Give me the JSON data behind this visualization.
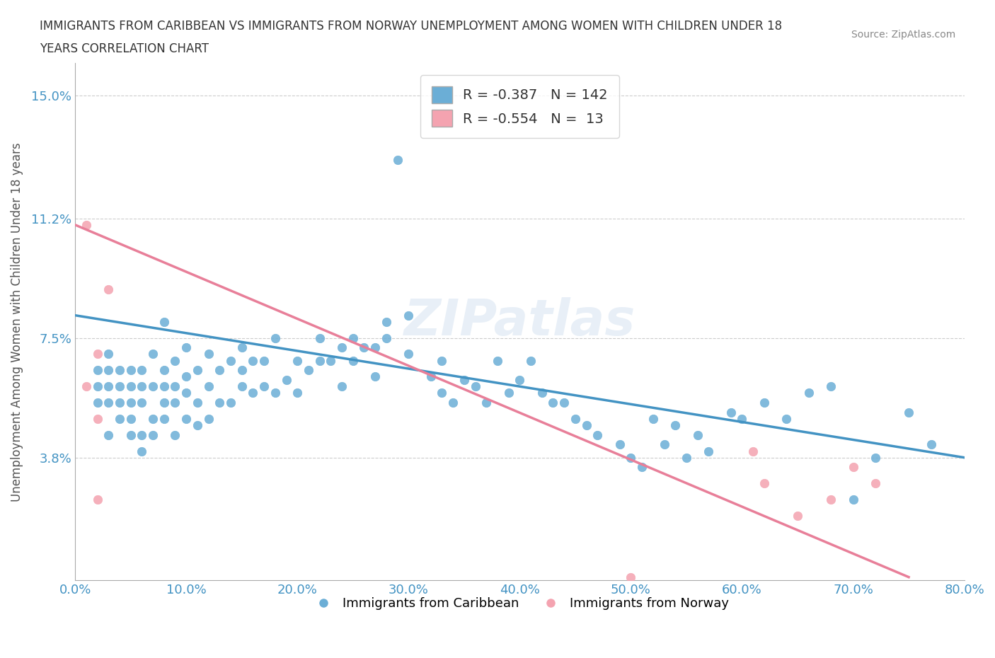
{
  "title": "IMMIGRANTS FROM CARIBBEAN VS IMMIGRANTS FROM NORWAY UNEMPLOYMENT AMONG WOMEN WITH CHILDREN UNDER 18\nYEARS CORRELATION CHART",
  "source_text": "Source: ZipAtlas.com",
  "xlabel": "",
  "ylabel": "Unemployment Among Women with Children Under 18 years",
  "xlim": [
    0.0,
    0.8
  ],
  "ylim": [
    0.0,
    0.16
  ],
  "yticks": [
    0.0,
    0.038,
    0.075,
    0.112,
    0.15
  ],
  "ytick_labels": [
    "",
    "3.8%",
    "7.5%",
    "11.2%",
    "15.0%"
  ],
  "xticks": [
    0.0,
    0.1,
    0.2,
    0.3,
    0.4,
    0.5,
    0.6,
    0.7,
    0.8
  ],
  "xtick_labels": [
    "0.0%",
    "10.0%",
    "20.0%",
    "30.0%",
    "40.0%",
    "50.0%",
    "60.0%",
    "70.0%",
    "80.0%"
  ],
  "watermark": "ZIPatlas",
  "legend_caribbean_r": "R = -0.387",
  "legend_caribbean_n": "N = 142",
  "legend_norway_r": "R = -0.554",
  "legend_norway_n": "N =  13",
  "caribbean_color": "#6baed6",
  "norway_color": "#f4a3b0",
  "caribbean_line_color": "#4393c3",
  "norway_line_color": "#e87f99",
  "background_color": "#ffffff",
  "grid_color": "#cccccc",
  "title_color": "#333333",
  "axis_label_color": "#555555",
  "tick_label_color": "#4393c3",
  "caribbean_scatter": {
    "x": [
      0.02,
      0.02,
      0.02,
      0.03,
      0.03,
      0.03,
      0.03,
      0.03,
      0.04,
      0.04,
      0.04,
      0.04,
      0.05,
      0.05,
      0.05,
      0.05,
      0.05,
      0.06,
      0.06,
      0.06,
      0.06,
      0.06,
      0.07,
      0.07,
      0.07,
      0.07,
      0.08,
      0.08,
      0.08,
      0.08,
      0.08,
      0.09,
      0.09,
      0.09,
      0.09,
      0.1,
      0.1,
      0.1,
      0.1,
      0.11,
      0.11,
      0.11,
      0.12,
      0.12,
      0.12,
      0.13,
      0.13,
      0.14,
      0.14,
      0.15,
      0.15,
      0.15,
      0.16,
      0.16,
      0.17,
      0.17,
      0.18,
      0.18,
      0.19,
      0.2,
      0.2,
      0.21,
      0.22,
      0.22,
      0.23,
      0.24,
      0.24,
      0.25,
      0.25,
      0.26,
      0.27,
      0.27,
      0.28,
      0.28,
      0.29,
      0.3,
      0.3,
      0.32,
      0.33,
      0.33,
      0.34,
      0.35,
      0.36,
      0.37,
      0.38,
      0.39,
      0.4,
      0.41,
      0.42,
      0.43,
      0.44,
      0.45,
      0.46,
      0.47,
      0.49,
      0.5,
      0.51,
      0.52,
      0.53,
      0.54,
      0.55,
      0.56,
      0.57,
      0.59,
      0.6,
      0.62,
      0.64,
      0.66,
      0.68,
      0.7,
      0.72,
      0.75,
      0.77
    ],
    "y": [
      0.055,
      0.06,
      0.065,
      0.045,
      0.055,
      0.06,
      0.065,
      0.07,
      0.05,
      0.055,
      0.06,
      0.065,
      0.045,
      0.05,
      0.055,
      0.06,
      0.065,
      0.04,
      0.045,
      0.055,
      0.06,
      0.065,
      0.045,
      0.05,
      0.06,
      0.07,
      0.05,
      0.055,
      0.06,
      0.065,
      0.08,
      0.045,
      0.055,
      0.06,
      0.068,
      0.05,
      0.058,
      0.063,
      0.072,
      0.048,
      0.055,
      0.065,
      0.05,
      0.06,
      0.07,
      0.055,
      0.065,
      0.055,
      0.068,
      0.06,
      0.065,
      0.072,
      0.058,
      0.068,
      0.06,
      0.068,
      0.058,
      0.075,
      0.062,
      0.058,
      0.068,
      0.065,
      0.068,
      0.075,
      0.068,
      0.072,
      0.06,
      0.075,
      0.068,
      0.072,
      0.063,
      0.072,
      0.075,
      0.08,
      0.13,
      0.07,
      0.082,
      0.063,
      0.058,
      0.068,
      0.055,
      0.062,
      0.06,
      0.055,
      0.068,
      0.058,
      0.062,
      0.068,
      0.058,
      0.055,
      0.055,
      0.05,
      0.048,
      0.045,
      0.042,
      0.038,
      0.035,
      0.05,
      0.042,
      0.048,
      0.038,
      0.045,
      0.04,
      0.052,
      0.05,
      0.055,
      0.05,
      0.058,
      0.06,
      0.025,
      0.038,
      0.052,
      0.042
    ]
  },
  "norway_scatter": {
    "x": [
      0.01,
      0.01,
      0.02,
      0.02,
      0.02,
      0.03,
      0.5,
      0.61,
      0.62,
      0.65,
      0.68,
      0.7,
      0.72
    ],
    "y": [
      0.06,
      0.11,
      0.025,
      0.05,
      0.07,
      0.09,
      0.001,
      0.04,
      0.03,
      0.02,
      0.025,
      0.035,
      0.03
    ]
  },
  "caribbean_trendline": {
    "x": [
      0.0,
      0.8
    ],
    "y": [
      0.082,
      0.038
    ]
  },
  "norway_trendline": {
    "x": [
      0.0,
      0.75
    ],
    "y": [
      0.11,
      0.001
    ]
  }
}
